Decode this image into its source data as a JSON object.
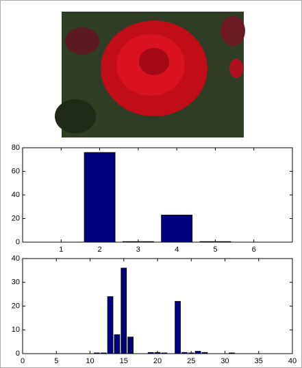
{
  "chart_data": [
    {
      "type": "bar",
      "x": [
        1,
        2,
        3,
        4,
        5,
        6
      ],
      "values": [
        0,
        76,
        0.5,
        23,
        0.5,
        0
      ],
      "color": "#00007f",
      "xlim": [
        0,
        7
      ],
      "xticks": [
        1,
        2,
        3,
        4,
        5,
        6
      ],
      "ylim": [
        0,
        80
      ],
      "yticks": [
        0,
        20,
        40,
        60,
        80
      ]
    },
    {
      "type": "bar",
      "x": [
        11,
        12,
        13,
        14,
        15,
        16,
        19,
        20,
        21,
        23,
        24,
        25,
        26,
        27,
        31
      ],
      "values": [
        0.3,
        0.3,
        24,
        8,
        36,
        7,
        0.5,
        0.5,
        0.3,
        22,
        0.5,
        0.3,
        1,
        0.5,
        0.3
      ],
      "color": "#00007f",
      "xlim": [
        0,
        40
      ],
      "xticks": [
        0,
        5,
        10,
        15,
        20,
        25,
        30,
        35,
        40
      ],
      "ylim": [
        0,
        40
      ],
      "yticks": [
        0,
        10,
        20,
        30,
        40
      ]
    }
  ]
}
